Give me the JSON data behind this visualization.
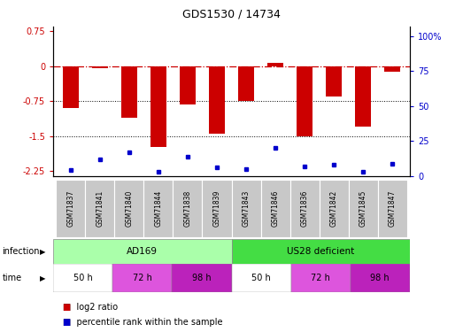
{
  "title": "GDS1530 / 14734",
  "samples": [
    "GSM71837",
    "GSM71841",
    "GSM71840",
    "GSM71844",
    "GSM71838",
    "GSM71839",
    "GSM71843",
    "GSM71846",
    "GSM71836",
    "GSM71842",
    "GSM71845",
    "GSM71847"
  ],
  "log2_ratio": [
    -0.9,
    -0.05,
    -1.1,
    -1.72,
    -0.82,
    -1.45,
    -0.75,
    0.07,
    -1.5,
    -0.65,
    -1.3,
    -0.12
  ],
  "percentile_rank": [
    4,
    12,
    17,
    3,
    14,
    6,
    5,
    20,
    7,
    8,
    3,
    9
  ],
  "bar_color": "#cc0000",
  "dot_color": "#0000cc",
  "ylim_left": [
    -2.35,
    0.85
  ],
  "ylim_right": [
    0,
    107
  ],
  "yticks_left": [
    0.75,
    0,
    -0.75,
    -1.5,
    -2.25
  ],
  "yticks_right": [
    100,
    75,
    50,
    25,
    0
  ],
  "infection_color_light": "#aaffaa",
  "infection_color_dark": "#44dd44",
  "time_colors": [
    "#ffffff",
    "#dd55dd",
    "#bb22bb",
    "#ffffff",
    "#dd55dd",
    "#bb22bb"
  ],
  "time_labels": [
    "50 h",
    "72 h",
    "98 h",
    "50 h",
    "72 h",
    "98 h"
  ],
  "sample_bg": "#c8c8c8",
  "legend_bar_color": "#cc0000",
  "legend_dot_color": "#0000cc"
}
